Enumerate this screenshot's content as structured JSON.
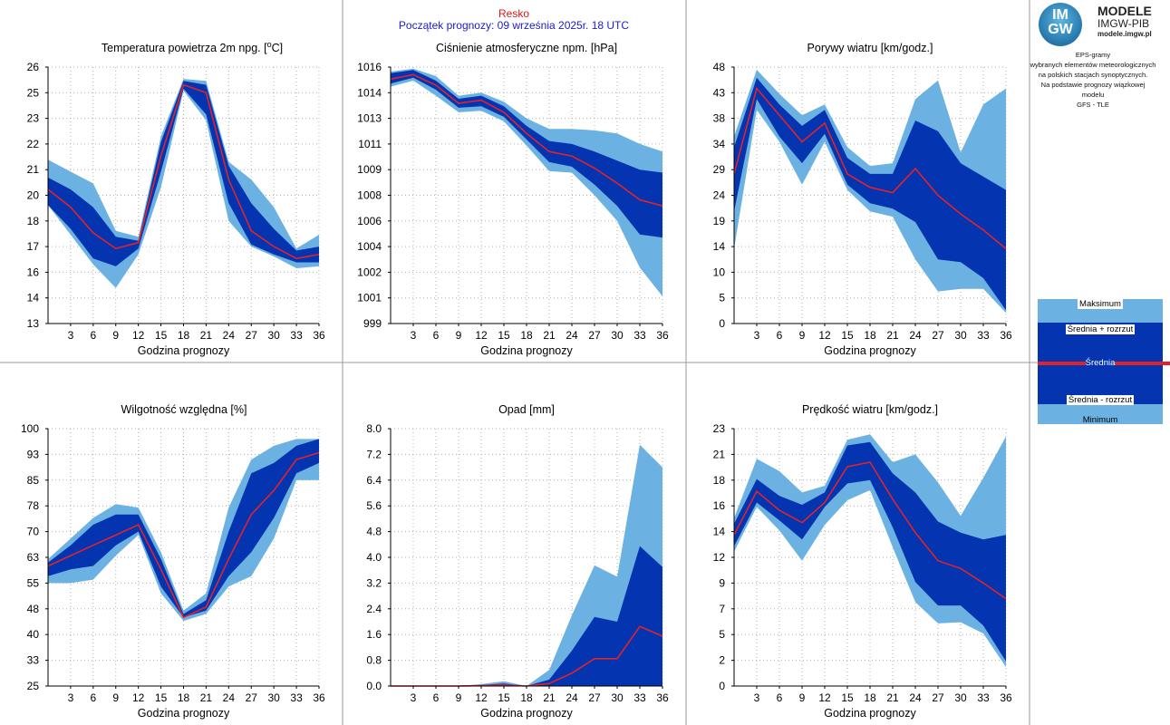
{
  "header": {
    "station": "Resko",
    "forecast_start": "Początek prognozy: 09 września 2025r. 18 UTC"
  },
  "logo": {
    "mark": "IMGW",
    "title": "MODELE",
    "subtitle": "IMGW-PIB",
    "url": "modele.imgw.pl"
  },
  "description": [
    "EPS-gramy",
    "wybranych elementów meteorologicznych",
    "na polskich stacjach  synoptycznych.",
    "",
    "Na podstawie prognozy wiązkowej modelu",
    "GFS - TLE"
  ],
  "legend": {
    "max": "Maksimum",
    "upper": "Średnia + rozrzut",
    "mean": "Średnia",
    "lower": "Średnia - rozrzut",
    "min": "Minimum"
  },
  "colors": {
    "minmax_band": "#6bb2e3",
    "spread_band": "#0534b0",
    "mean_line": "#e0232b",
    "grid": "#b0b0b0",
    "divider": "#9a9a9a"
  },
  "chart_data": [
    {
      "type": "area",
      "title_pre": "Temperatura powietrza 2m npg. [",
      "title_sup": "o",
      "title_post": "C]",
      "xlabel": "Godzina prognozy",
      "x": [
        0,
        3,
        6,
        9,
        12,
        15,
        18,
        21,
        24,
        27,
        30,
        33,
        36
      ],
      "xticks": [
        "3",
        "6",
        "9",
        "12",
        "15",
        "18",
        "21",
        "24",
        "27",
        "30",
        "33",
        "36"
      ],
      "yticks": [
        "13",
        "14",
        "16",
        "17",
        "18",
        "20",
        "21",
        "22",
        "23",
        "25",
        "26"
      ],
      "ylim": [
        13,
        26
      ],
      "max": [
        21.3,
        20.7,
        20.1,
        17.7,
        17.4,
        22.5,
        25.4,
        25.3,
        21.2,
        20.3,
        18.9,
        16.8,
        17.5
      ],
      "upper": [
        20.4,
        19.8,
        18.9,
        17.4,
        17.2,
        22.2,
        25.3,
        25.1,
        21.0,
        19.1,
        17.8,
        16.7,
        16.9
      ],
      "mean": [
        19.8,
        18.9,
        17.6,
        16.8,
        17.1,
        21.5,
        25.1,
        24.7,
        20.3,
        17.7,
        16.9,
        16.3,
        16.5
      ],
      "lower": [
        19.0,
        17.8,
        16.3,
        15.9,
        16.8,
        20.7,
        24.9,
        23.6,
        19.1,
        17.0,
        16.5,
        16.1,
        16.1
      ],
      "min": [
        19.0,
        17.5,
        16.0,
        14.8,
        16.5,
        19.9,
        24.8,
        23.3,
        18.2,
        16.9,
        16.4,
        15.8,
        15.9
      ]
    },
    {
      "type": "area",
      "title": "Ciśnienie atmosferyczne npm. [hPa]",
      "xlabel": "Godzina prognozy",
      "x": [
        0,
        3,
        6,
        9,
        12,
        15,
        18,
        21,
        24,
        27,
        30,
        33,
        36
      ],
      "xticks": [
        "3",
        "6",
        "9",
        "12",
        "15",
        "18",
        "21",
        "24",
        "27",
        "30",
        "33",
        "36"
      ],
      "yticks": [
        "999",
        "1001",
        "1002",
        "1004",
        "1006",
        "1008",
        "1009",
        "1011",
        "1013",
        "1014",
        "1016"
      ],
      "ylim": [
        999,
        1016
      ],
      "max": [
        1015.7,
        1015.9,
        1015.4,
        1014.1,
        1014.3,
        1013.7,
        1012.6,
        1011.9,
        1011.9,
        1011.8,
        1011.6,
        1010.9,
        1010.4
      ],
      "upper": [
        1015.6,
        1015.8,
        1015.1,
        1013.9,
        1014.1,
        1013.4,
        1012.1,
        1011.1,
        1010.9,
        1010.4,
        1009.8,
        1009.2,
        1009.0
      ],
      "mean": [
        1015.2,
        1015.5,
        1014.8,
        1013.6,
        1013.8,
        1013.0,
        1011.6,
        1010.4,
        1010.1,
        1009.3,
        1008.3,
        1007.2,
        1006.8
      ],
      "lower": [
        1014.9,
        1015.3,
        1014.5,
        1013.3,
        1013.4,
        1012.7,
        1011.2,
        1009.7,
        1009.4,
        1008.2,
        1006.8,
        1004.9,
        1004.7
      ],
      "min": [
        1014.7,
        1015.1,
        1014.1,
        1013.0,
        1013.1,
        1012.4,
        1010.8,
        1009.1,
        1009.0,
        1007.5,
        1005.8,
        1002.7,
        1000.8
      ]
    },
    {
      "type": "area",
      "title": "Porywy wiatru [km/godz.]",
      "xlabel": "Godzina prognozy",
      "x": [
        0,
        3,
        6,
        9,
        12,
        15,
        18,
        21,
        24,
        27,
        30,
        33,
        36
      ],
      "xticks": [
        "3",
        "6",
        "9",
        "12",
        "15",
        "18",
        "21",
        "24",
        "27",
        "30",
        "33",
        "36"
      ],
      "yticks": [
        "0",
        "5",
        "10",
        "14",
        "19",
        "24",
        "29",
        "34",
        "38",
        "43",
        "48"
      ],
      "ylim": [
        0,
        48
      ],
      "max": [
        35.0,
        47.5,
        43.0,
        39.0,
        41.0,
        33.0,
        29.5,
        30.0,
        42.0,
        45.5,
        32.0,
        41.0,
        44.0
      ],
      "upper": [
        33.0,
        46.0,
        41.0,
        37.0,
        40.0,
        31.0,
        28.0,
        28.0,
        38.0,
        36.0,
        30.0,
        27.5,
        25.0
      ],
      "mean": [
        28.0,
        44.0,
        39.0,
        34.0,
        37.5,
        28.0,
        25.5,
        24.5,
        29.0,
        24.0,
        20.5,
        17.5,
        14.0
      ],
      "lower": [
        21.0,
        42.0,
        35.0,
        30.0,
        35.5,
        26.0,
        22.5,
        21.5,
        19.0,
        12.0,
        11.5,
        8.5,
        2.5
      ],
      "min": [
        14.0,
        40.0,
        34.0,
        26.0,
        34.0,
        25.0,
        21.0,
        20.0,
        12.0,
        6.0,
        6.5,
        6.5,
        2.0
      ]
    },
    {
      "type": "area",
      "title": "Wilgotność względna [%]",
      "xlabel": "Godzina prognozy",
      "x": [
        0,
        3,
        6,
        9,
        12,
        15,
        18,
        21,
        24,
        27,
        30,
        33,
        36
      ],
      "xticks": [
        "3",
        "6",
        "9",
        "12",
        "15",
        "18",
        "21",
        "24",
        "27",
        "30",
        "33",
        "36"
      ],
      "yticks": [
        "25",
        "33",
        "40",
        "48",
        "55",
        "63",
        "70",
        "78",
        "85",
        "93",
        "100"
      ],
      "ylim": [
        25,
        100
      ],
      "max": [
        62,
        68,
        74,
        78,
        77,
        64,
        47,
        52,
        77,
        91,
        95,
        97,
        97
      ],
      "upper": [
        61,
        66,
        72,
        75,
        75,
        62,
        46,
        50,
        70,
        87,
        90,
        95,
        97
      ],
      "mean": [
        60,
        63,
        66,
        69,
        72,
        59,
        45,
        48,
        62,
        75,
        82,
        91,
        93
      ],
      "lower": [
        57,
        59,
        60,
        66,
        70,
        54,
        45,
        47,
        57,
        64,
        74,
        87,
        90
      ],
      "min": [
        55,
        55,
        56,
        63,
        69,
        52,
        44,
        46,
        54,
        57,
        68,
        85,
        85
      ]
    },
    {
      "type": "area",
      "title": "Opad [mm]",
      "xlabel": "Godzina prognozy",
      "x": [
        0,
        3,
        6,
        9,
        12,
        15,
        18,
        21,
        24,
        27,
        30,
        33,
        36
      ],
      "xticks": [
        "3",
        "6",
        "9",
        "12",
        "15",
        "18",
        "21",
        "24",
        "27",
        "30",
        "33",
        "36"
      ],
      "yticks": [
        "0.0",
        "0.8",
        "1.6",
        "2.4",
        "3.2",
        "4.0",
        "4.8",
        "5.6",
        "6.4",
        "7.2",
        "8.0"
      ],
      "ylim": [
        0,
        8
      ],
      "max": [
        0.0,
        0.0,
        0.0,
        0.0,
        0.06,
        0.15,
        0.0,
        0.5,
        2.2,
        3.75,
        3.4,
        7.5,
        6.8
      ],
      "upper": [
        0.0,
        0.0,
        0.0,
        0.0,
        0.03,
        0.08,
        0.0,
        0.2,
        1.1,
        2.15,
        2.0,
        4.35,
        3.7
      ],
      "mean": [
        0.0,
        0.0,
        0.0,
        0.0,
        0.01,
        0.03,
        0.0,
        0.08,
        0.4,
        0.85,
        0.85,
        1.85,
        1.55
      ],
      "lower": [
        0.0,
        0.0,
        0.0,
        0.0,
        0.0,
        0.0,
        0.0,
        0.0,
        0.0,
        0.0,
        0.0,
        0.0,
        0.0
      ],
      "min": [
        0.0,
        0.0,
        0.0,
        0.0,
        0.0,
        0.0,
        0.0,
        0.0,
        0.0,
        0.0,
        0.0,
        0.0,
        0.0
      ]
    },
    {
      "type": "area",
      "title": "Prędkość wiatru [km/godz.]",
      "xlabel": "Godzina prognozy",
      "x": [
        0,
        3,
        6,
        9,
        12,
        15,
        18,
        21,
        24,
        27,
        30,
        33,
        36
      ],
      "xticks": [
        "3",
        "6",
        "9",
        "12",
        "15",
        "18",
        "21",
        "24",
        "27",
        "30",
        "33",
        "36"
      ],
      "yticks": [
        "0",
        "2",
        "5",
        "7",
        "9",
        "12",
        "14",
        "16",
        "18",
        "21",
        "23"
      ],
      "ylim": [
        0,
        23
      ],
      "max": [
        15.0,
        20.3,
        19.2,
        17.3,
        17.9,
        22.0,
        22.5,
        20.0,
        20.7,
        18.2,
        15.2,
        18.6,
        22.3
      ],
      "upper": [
        14.5,
        18.5,
        17.0,
        16.2,
        17.3,
        21.5,
        21.8,
        19.0,
        17.3,
        14.7,
        13.7,
        13.1,
        13.5
      ],
      "mean": [
        13.5,
        17.4,
        15.7,
        14.6,
        16.4,
        19.6,
        20.0,
        16.7,
        13.7,
        11.2,
        10.5,
        9.2,
        7.8
      ],
      "lower": [
        12.5,
        16.4,
        14.8,
        13.1,
        16.0,
        18.1,
        18.4,
        14.2,
        9.3,
        7.2,
        7.2,
        5.4,
        2.2
      ],
      "min": [
        12.0,
        16.0,
        13.9,
        11.2,
        14.4,
        16.6,
        17.5,
        12.4,
        7.5,
        5.6,
        5.7,
        4.7,
        1.7
      ]
    }
  ]
}
